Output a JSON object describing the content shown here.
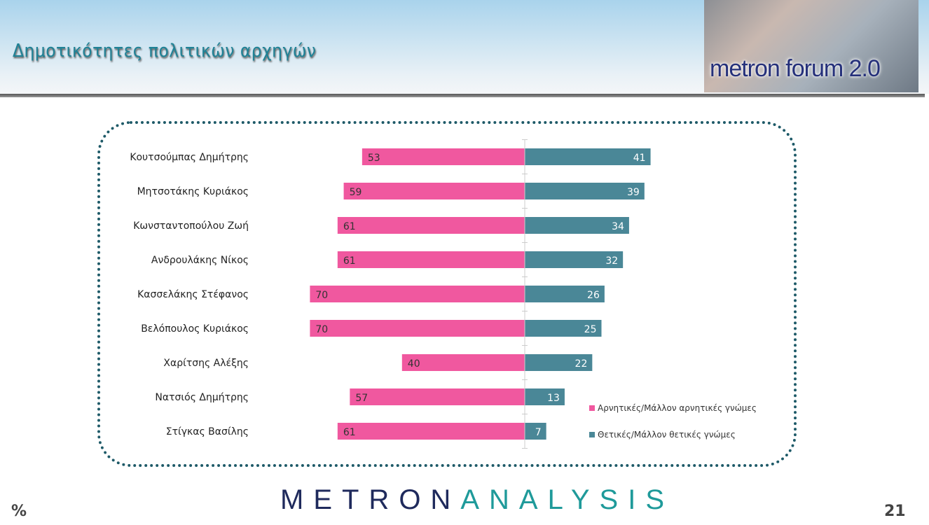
{
  "header": {
    "title": "Δημοτικότητες πολιτικών αρχηγών",
    "logo_text": "metron forum 2.0"
  },
  "footer": {
    "brand_part1": "METRON",
    "brand_part2": "ANALYSIS",
    "percent_sign": "%",
    "page_number": "21"
  },
  "chart_data": {
    "type": "bar",
    "orientation": "horizontal-diverging",
    "categories": [
      "Κουτσούμπας Δημήτρης",
      "Μητσοτάκης Κυριάκος",
      "Κωνσταντοπούλου Ζωή",
      "Ανδρουλάκης Νίκος",
      "Κασσελάκης Στέφανος",
      "Βελόπουλος Κυριάκος",
      "Χαρίτσης Αλέξης",
      "Νατσιός Δημήτρης",
      "Στίγκας Βασίλης"
    ],
    "series": [
      {
        "name": "Αρνητικές/Μάλλον αρνητικές γνώμες",
        "color": "#f0589f",
        "values": [
          53,
          59,
          61,
          61,
          70,
          70,
          40,
          57,
          61
        ]
      },
      {
        "name": "Θετικές/Μάλλον θετικές γνώμες",
        "color": "#4a8797",
        "values": [
          41,
          39,
          34,
          32,
          26,
          25,
          22,
          13,
          7
        ]
      }
    ],
    "legend": "bottom-right",
    "grid": false,
    "data_labels": true
  }
}
